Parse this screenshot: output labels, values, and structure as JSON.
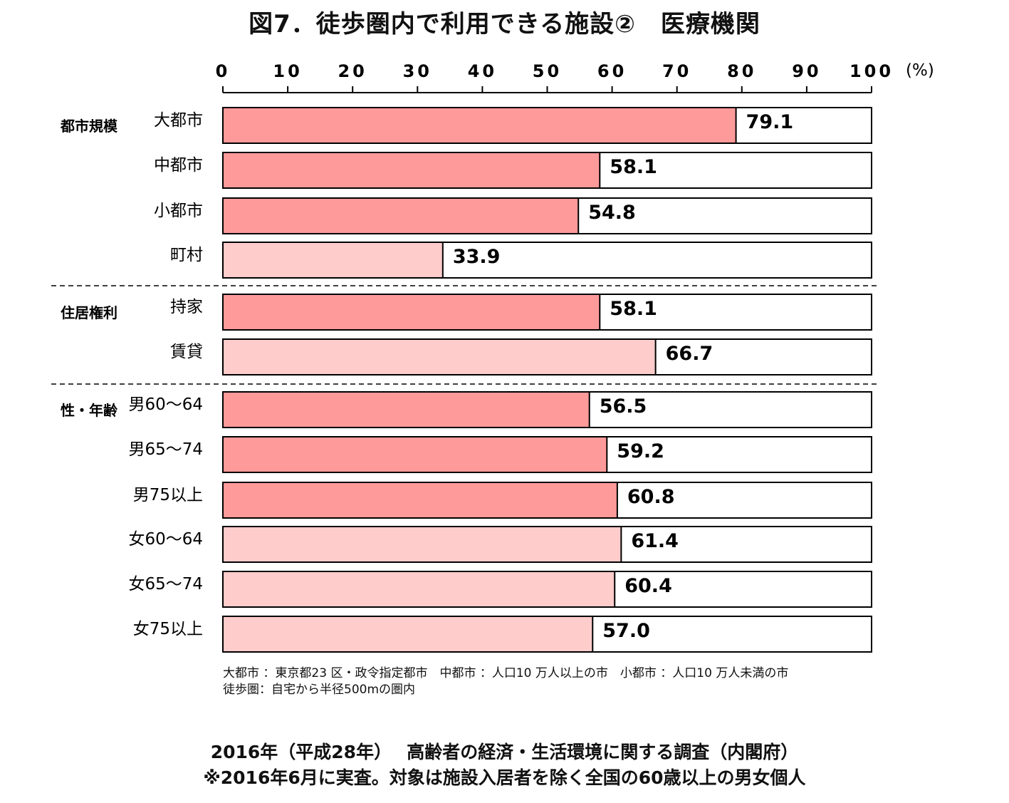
{
  "title": "図7．徒歩圏内で利用できる施設②　医療機関",
  "chart_data": {
    "type": "bar",
    "orientation": "horizontal",
    "unit_label": "(%)",
    "xlim": [
      0,
      100
    ],
    "ticks": [
      0,
      10,
      20,
      30,
      40,
      50,
      60,
      70,
      80,
      90,
      100
    ],
    "groups": [
      {
        "name": "都市規模",
        "items": [
          {
            "label": "大都市",
            "value": 79.1,
            "value_text": "79.1",
            "color": "#ff9a9a"
          },
          {
            "label": "中都市",
            "value": 58.1,
            "value_text": "58.1",
            "color": "#ff9a9a"
          },
          {
            "label": "小都市",
            "value": 54.8,
            "value_text": "54.8",
            "color": "#ff9a9a"
          },
          {
            "label": "町村",
            "value": 33.9,
            "value_text": "33.9",
            "color": "#ffcccc"
          }
        ]
      },
      {
        "name": "住居権利",
        "items": [
          {
            "label": "持家",
            "value": 58.1,
            "value_text": "58.1",
            "color": "#ff9a9a"
          },
          {
            "label": "賃貸",
            "value": 66.7,
            "value_text": "66.7",
            "color": "#ffcccc"
          }
        ]
      },
      {
        "name": "性・年齢",
        "items": [
          {
            "label": "男60～64",
            "value": 56.5,
            "value_text": "56.5",
            "color": "#ff9a9a"
          },
          {
            "label": "男65～74",
            "value": 59.2,
            "value_text": "59.2",
            "color": "#ff9a9a"
          },
          {
            "label": "男75以上",
            "value": 60.8,
            "value_text": "60.8",
            "color": "#ff9a9a"
          },
          {
            "label": "女60～64",
            "value": 61.4,
            "value_text": "61.4",
            "color": "#ffcccc"
          },
          {
            "label": "女65～74",
            "value": 60.4,
            "value_text": "60.4",
            "color": "#ffcccc"
          },
          {
            "label": "女75以上",
            "value": 57.0,
            "value_text": "57.0",
            "color": "#ffcccc"
          }
        ]
      }
    ]
  },
  "notes": {
    "line1": "大都市 ：東京都23 区・政令指定都市　中都市 ：人口10 万人以上の市　小都市 ：人口10 万人未満の市",
    "line2": "徒歩圏：自宅から半径500mの圏内"
  },
  "footer": {
    "line1": "2016年（平成28年）　 高齢者の経済・生活環境に関する調査（内閣府）",
    "line2": "※2016年6月に実査。対象は施設入居者を除く全国の60歳以上の男女個人"
  }
}
